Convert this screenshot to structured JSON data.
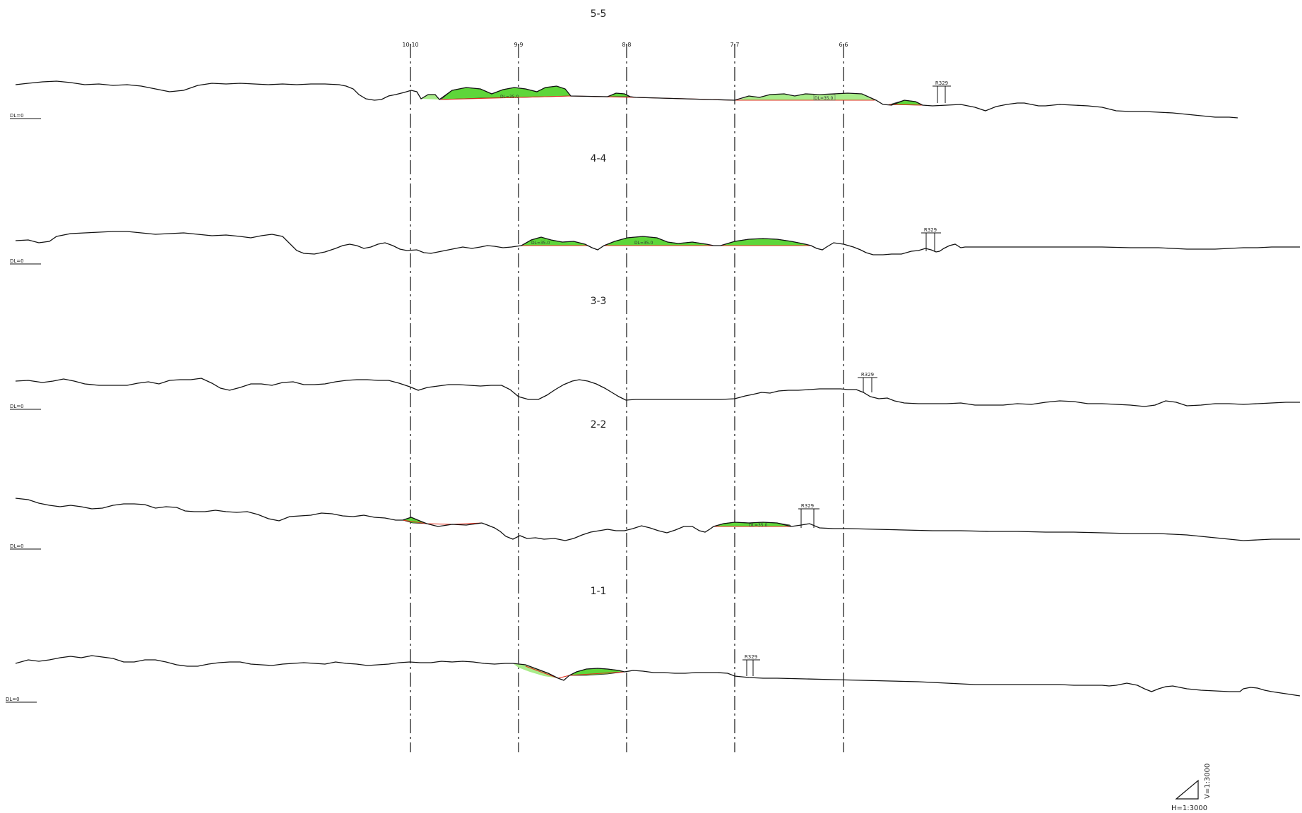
{
  "drawing": {
    "column_lines": [
      {
        "label": "10-10"
      },
      {
        "label": "9-9"
      },
      {
        "label": "8-8"
      },
      {
        "label": "7-7"
      },
      {
        "label": "6-6"
      }
    ],
    "sections": [
      {
        "title": "5-5",
        "datum": "DL=0",
        "road": "R329",
        "annotations": [
          "DL=35.0",
          "DL=35.0"
        ]
      },
      {
        "title": "4-4",
        "datum": "DL=0",
        "road": "R329",
        "annotations": [
          "DL=35.0",
          "DL=35.0"
        ]
      },
      {
        "title": "3-3",
        "datum": "DL=0",
        "road": "R329",
        "annotations": []
      },
      {
        "title": "2-2",
        "datum": "DL=0",
        "road": "R329",
        "annotations": [
          "DL=35.0"
        ]
      },
      {
        "title": "1-1",
        "datum": "DL=0",
        "road": "R329",
        "annotations": []
      }
    ],
    "scale": {
      "vertical": "V=1:3000",
      "horizontal": "H=1:3000"
    },
    "colors": {
      "ground_line": "#111111",
      "design_line": "#e03020",
      "fill_green": "#5ed63a",
      "fill_light_green": "#a8ec8a"
    }
  }
}
